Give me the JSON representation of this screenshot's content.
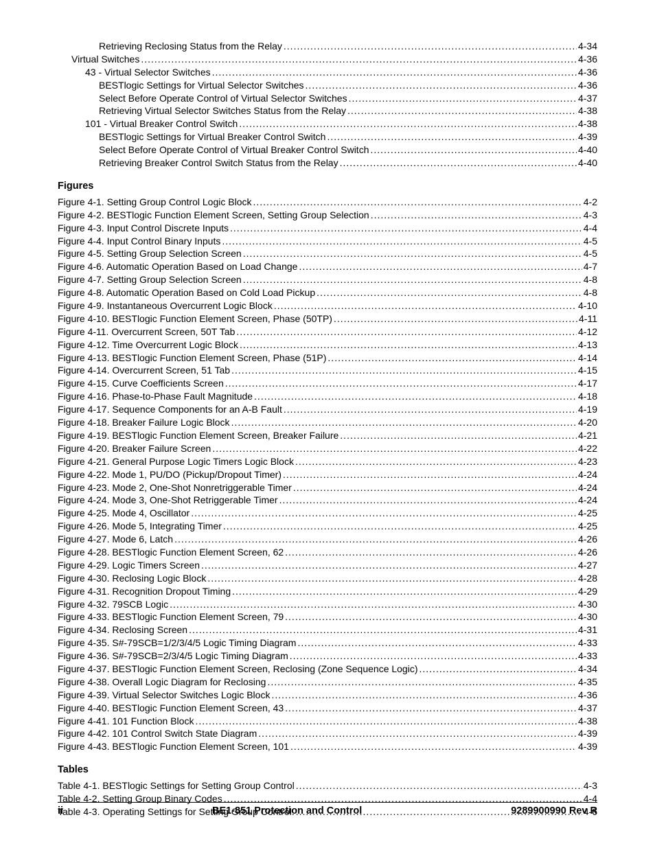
{
  "text_color": "#000000",
  "background_color": "#ffffff",
  "font_family": "Arial",
  "base_fontsize": 14,
  "heading_fontsize": 14.5,
  "toc_top": [
    {
      "indent": 3,
      "text": "Retrieving Reclosing Status from the Relay",
      "page": "4-34"
    },
    {
      "indent": 1,
      "text": "Virtual Switches",
      "page": "4-36"
    },
    {
      "indent": 2,
      "text": "43 - Virtual Selector Switches ",
      "page": "4-36"
    },
    {
      "indent": 3,
      "text": "BESTlogic Settings for Virtual Selector Switches",
      "page": "4-36"
    },
    {
      "indent": 3,
      "text": "Select Before Operate Control of Virtual Selector Switches ",
      "page": "4-37"
    },
    {
      "indent": 3,
      "text": "Retrieving Virtual Selector Switches Status from the Relay",
      "page": "4-38"
    },
    {
      "indent": 2,
      "text": "101 - Virtual Breaker Control Switch ",
      "page": "4-38"
    },
    {
      "indent": 3,
      "text": "BESTlogic Settings for Virtual Breaker Control Switch ",
      "page": "4-39"
    },
    {
      "indent": 3,
      "text": "Select Before Operate Control of Virtual Breaker Control Switch ",
      "page": "4-40"
    },
    {
      "indent": 3,
      "text": "Retrieving Breaker Control Switch Status from the Relay",
      "page": "4-40"
    }
  ],
  "figures_heading": "Figures",
  "figures": [
    {
      "text": "Figure 4-1. Setting Group Control Logic Block",
      "page": "4-2"
    },
    {
      "text": "Figure 4-2. BESTlogic Function Element Screen, Setting Group Selection",
      "page": "4-3"
    },
    {
      "text": "Figure 4-3. Input Control Discrete Inputs",
      "page": "4-4"
    },
    {
      "text": "Figure 4-4. Input Control Binary Inputs",
      "page": "4-5"
    },
    {
      "text": "Figure 4-5. Setting Group Selection Screen",
      "page": "4-5"
    },
    {
      "text": "Figure 4-6. Automatic Operation Based on Load Change ",
      "page": "4-7"
    },
    {
      "text": "Figure 4-7. Setting Group Selection Screen",
      "page": "4-8"
    },
    {
      "text": "Figure 4-8. Automatic Operation Based on Cold Load Pickup",
      "page": "4-8"
    },
    {
      "text": "Figure 4-9. Instantaneous Overcurrent Logic Block ",
      "page": "4-10"
    },
    {
      "text": "Figure 4-10. BESTlogic Function Element Screen, Phase (50TP) ",
      "page": "4-11"
    },
    {
      "text": "Figure 4-11. Overcurrent Screen, 50T Tab ",
      "page": "4-12"
    },
    {
      "text": "Figure 4-12. Time Overcurrent Logic Block",
      "page": "4-13"
    },
    {
      "text": "Figure 4-13. BESTlogic Function Element Screen, Phase (51P)",
      "page": "4-14"
    },
    {
      "text": "Figure 4-14. Overcurrent Screen, 51 Tab",
      "page": "4-15"
    },
    {
      "text": "Figure 4-15. Curve Coefficients Screen ",
      "page": "4-17"
    },
    {
      "text": "Figure 4-16. Phase-to-Phase Fault Magnitude ",
      "page": "4-18"
    },
    {
      "text": "Figure 4-17. Sequence Components for an A-B Fault ",
      "page": "4-19"
    },
    {
      "text": "Figure 4-18. Breaker Failure Logic Block ",
      "page": "4-20"
    },
    {
      "text": "Figure 4-19. BESTlogic Function Element Screen, Breaker Failure ",
      "page": "4-21"
    },
    {
      "text": "Figure 4-20. Breaker Failure Screen ",
      "page": "4-22"
    },
    {
      "text": "Figure 4-21. General Purpose Logic Timers Logic Block",
      "page": "4-23"
    },
    {
      "text": "Figure 4-22. Mode 1, PU/DO (Pickup/Dropout Timer) ",
      "page": "4-24"
    },
    {
      "text": "Figure 4-23. Mode 2, One-Shot Nonretriggerable Timer",
      "page": "4-24"
    },
    {
      "text": "Figure 4-24. Mode 3, One-Shot Retriggerable Timer",
      "page": "4-24"
    },
    {
      "text": "Figure 4-25. Mode 4, Oscillator ",
      "page": "4-25"
    },
    {
      "text": "Figure 4-26. Mode 5, Integrating Timer",
      "page": "4-25"
    },
    {
      "text": "Figure 4-27. Mode 6, Latch ",
      "page": "4-26"
    },
    {
      "text": "Figure 4-28. BESTlogic Function Element Screen, 62",
      "page": "4-26"
    },
    {
      "text": "Figure 4-29. Logic Timers Screen ",
      "page": "4-27"
    },
    {
      "text": "Figure 4-30. Reclosing Logic Block ",
      "page": "4-28"
    },
    {
      "text": "Figure 4-31. Recognition Dropout Timing",
      "page": "4-29"
    },
    {
      "text": "Figure 4-32. 79SCB Logic ",
      "page": "4-30"
    },
    {
      "text": "Figure 4-33. BESTlogic Function Element Screen, 79",
      "page": "4-30"
    },
    {
      "text": "Figure 4-34. Reclosing Screen ",
      "page": "4-31"
    },
    {
      "text": "Figure 4-35. S#-79SCB=1/2/3/4/5 Logic Timing Diagram",
      "page": "4-33"
    },
    {
      "text": "Figure 4-36. S#-79SCB=2/3/4/5 Logic Timing Diagram",
      "page": "4-33"
    },
    {
      "text": "Figure 4-37. BESTlogic Function Element Screen, Reclosing (Zone Sequence Logic) ",
      "page": "4-34"
    },
    {
      "text": "Figure 4-38. Overall Logic Diagram for Reclosing ",
      "page": "4-35"
    },
    {
      "text": "Figure 4-39. Virtual Selector Switches Logic Block",
      "page": "4-36"
    },
    {
      "text": "Figure 4-40. BESTlogic Function Element Screen, 43",
      "page": "4-37"
    },
    {
      "text": "Figure 4-41. 101 Function Block",
      "page": "4-38"
    },
    {
      "text": "Figure 4-42. 101 Control Switch State Diagram",
      "page": "4-39"
    },
    {
      "text": "Figure 4-43. BESTlogic Function Element Screen, 101",
      "page": "4-39"
    }
  ],
  "tables_heading": "Tables",
  "tables": [
    {
      "text": "Table 4-1. BESTlogic Settings for Setting Group Control ",
      "page": "4-3"
    },
    {
      "text": "Table 4-2. Setting Group Binary Codes",
      "page": "4-4"
    },
    {
      "text": "Table 4-3. Operating Settings for Setting Group Control. ",
      "page": "4-6"
    }
  ],
  "footer": {
    "left": "ii",
    "center": "BE1-851 Protection and Control",
    "right": "9289900990 Rev R"
  }
}
